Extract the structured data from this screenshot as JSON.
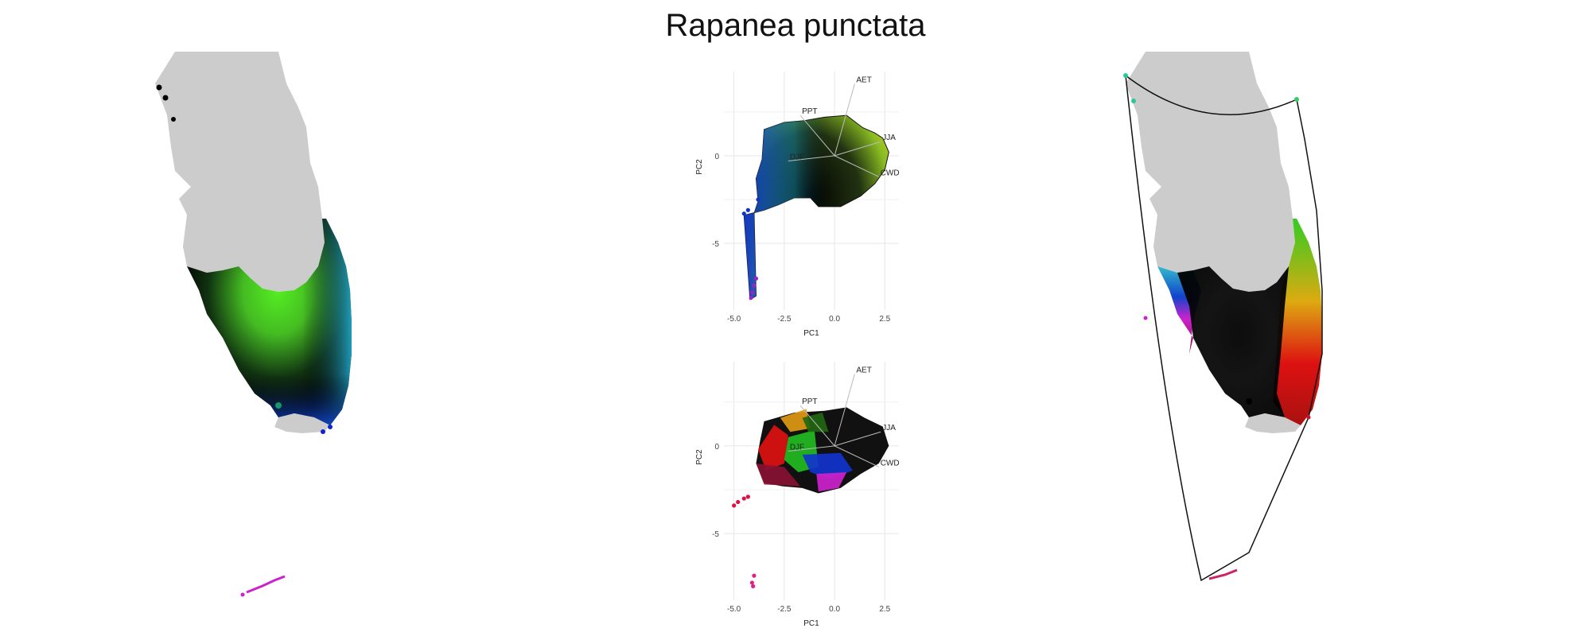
{
  "title": "Rapanea punctata",
  "colors": {
    "land_outside": "#cccccc",
    "accent_green": "#66ee22",
    "accent_blue": "#1133cc",
    "accent_magenta": "#cc22cc",
    "accent_red": "#dd1111",
    "grid": "#e6e6e6",
    "axis_text": "#444444"
  },
  "left_map": {
    "description_icon": "florida-map"
  },
  "right_map": {
    "description_icon": "florida-map"
  },
  "chart_data": [
    {
      "type": "scatter",
      "panel": "top",
      "xlabel": "PC1",
      "ylabel": "PC2",
      "xlim": [
        -5.5,
        3.2
      ],
      "ylim": [
        -8.8,
        4.8
      ],
      "x_ticks": [
        -5.0,
        -2.5,
        0.0,
        2.5
      ],
      "x_tick_labels": [
        "-5.0",
        "-2.5",
        "0.0",
        "2.5"
      ],
      "y_ticks": [
        0,
        -5
      ],
      "y_tick_labels": [
        "0",
        "-5"
      ],
      "grid": true,
      "loadings": [
        {
          "label": "AET",
          "x": 1.0,
          "y": 4.1
        },
        {
          "label": "PPT",
          "x": -1.7,
          "y": 2.3
        },
        {
          "label": "JJA",
          "x": 2.3,
          "y": 0.8
        },
        {
          "label": "DJF",
          "x": -2.3,
          "y": -0.3
        },
        {
          "label": "CWD",
          "x": 2.2,
          "y": -1.2
        }
      ],
      "hull": [
        [
          -3.5,
          1.5
        ],
        [
          -2.5,
          1.9
        ],
        [
          -1.5,
          2.0
        ],
        [
          -0.5,
          2.2
        ],
        [
          0.6,
          2.3
        ],
        [
          1.4,
          1.6
        ],
        [
          2.0,
          1.3
        ],
        [
          2.4,
          1.0
        ],
        [
          2.7,
          0.2
        ],
        [
          2.5,
          -0.8
        ],
        [
          2.0,
          -1.6
        ],
        [
          1.3,
          -2.3
        ],
        [
          0.3,
          -2.9
        ],
        [
          -0.8,
          -2.9
        ],
        [
          -1.2,
          -2.4
        ],
        [
          -2.0,
          -2.4
        ],
        [
          -2.8,
          -2.8
        ],
        [
          -3.5,
          -3.1
        ],
        [
          -4.5,
          -3.4
        ],
        [
          -4.2,
          -8.2
        ],
        [
          -3.9,
          -8.0
        ],
        [
          -4.0,
          -3.3
        ],
        [
          -3.8,
          -2.6
        ],
        [
          -3.9,
          -1.3
        ],
        [
          -3.6,
          -0.2
        ]
      ],
      "outliers": [
        [
          -3.9,
          -7.0
        ],
        [
          -4.0,
          -7.4
        ],
        [
          -4.1,
          -7.8
        ],
        [
          -4.15,
          -8.1
        ],
        [
          -3.8,
          -2.5
        ],
        [
          -4.3,
          -3.1
        ],
        [
          -4.5,
          -3.3
        ]
      ]
    },
    {
      "type": "scatter",
      "panel": "bottom",
      "xlabel": "PC1",
      "ylabel": "PC2",
      "xlim": [
        -5.5,
        3.2
      ],
      "ylim": [
        -8.8,
        4.8
      ],
      "x_ticks": [
        -5.0,
        -2.5,
        0.0,
        2.5
      ],
      "x_tick_labels": [
        "-5.0",
        "-2.5",
        "0.0",
        "2.5"
      ],
      "y_ticks": [
        0,
        -5
      ],
      "y_tick_labels": [
        "0",
        "-5"
      ],
      "grid": true,
      "loadings": [
        {
          "label": "AET",
          "x": 1.0,
          "y": 4.1
        },
        {
          "label": "PPT",
          "x": -1.7,
          "y": 2.3
        },
        {
          "label": "JJA",
          "x": 2.3,
          "y": 0.8
        },
        {
          "label": "DJF",
          "x": -2.3,
          "y": -0.3
        },
        {
          "label": "CWD",
          "x": 2.2,
          "y": -1.2
        }
      ],
      "outliers": [
        [
          -5.0,
          -3.4
        ],
        [
          -4.8,
          -3.2
        ],
        [
          -4.5,
          -3.0
        ],
        [
          -4.3,
          -2.9
        ],
        [
          -4.0,
          -7.4
        ],
        [
          -4.1,
          -7.8
        ],
        [
          -4.05,
          -8.0
        ]
      ]
    }
  ]
}
